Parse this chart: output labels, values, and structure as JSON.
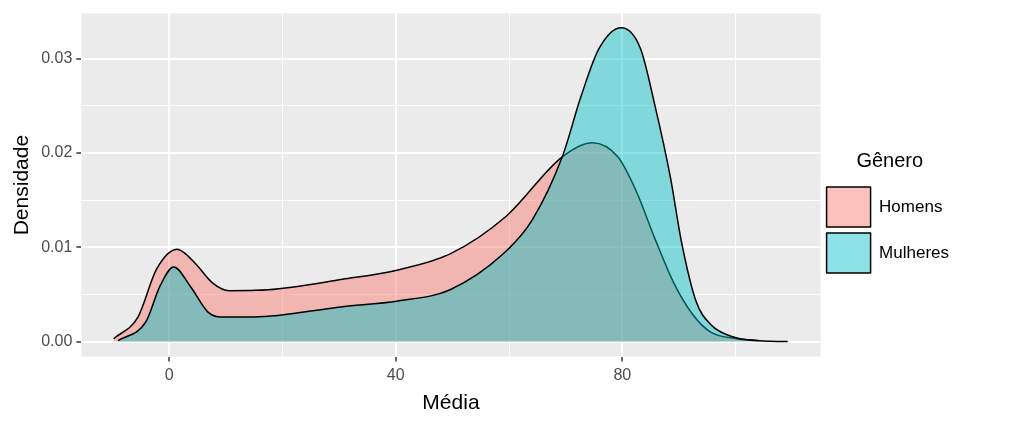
{
  "chart_data": {
    "type": "area",
    "xlabel": "Média",
    "ylabel": "Densidade",
    "legend_title": "Gênero",
    "legend": "right",
    "grid": true,
    "xlim": [
      -15.5,
      115
    ],
    "ylim": [
      -0.0016,
      0.0348
    ],
    "xticks": [
      0,
      {
        "value": 20,
        "label": null
      },
      40,
      {
        "value": 60,
        "label": null
      },
      80,
      {
        "value": 100,
        "label": null
      }
    ],
    "yticks": [
      {
        "value": 0,
        "label": "0.00"
      },
      {
        "value": 0.005,
        "label": null
      },
      {
        "value": 0.01,
        "label": "0.01"
      },
      {
        "value": 0.015,
        "label": null
      },
      {
        "value": 0.02,
        "label": "0.02"
      },
      {
        "value": 0.025,
        "label": null
      },
      {
        "value": 0.03,
        "label": "0.03"
      }
    ],
    "series": [
      {
        "name": "Homens",
        "color": "#f8766d",
        "x": [
          -9.8,
          -5.5,
          -2.2,
          1.4,
          4.3,
          7.7,
          10.6,
          17.5,
          30.6,
          40.4,
          49.6,
          59.5,
          69.4,
          74.7,
          79.2,
          82.5,
          85.7,
          89.1,
          92.4,
          95.6,
          100.3,
          104
        ],
        "values": [
          0.0003,
          0.0026,
          0.0077,
          0.0098,
          0.0085,
          0.0062,
          0.0054,
          0.0055,
          0.0066,
          0.0076,
          0.0093,
          0.0133,
          0.0196,
          0.0211,
          0.0196,
          0.0159,
          0.011,
          0.0062,
          0.0029,
          0.001,
          0.0003,
          0.0001
        ]
      },
      {
        "name": "Mulheres",
        "color": "#00bfc4",
        "x": [
          -9,
          -4.1,
          -1.6,
          0.8,
          3.7,
          6.9,
          9.7,
          14.8,
          30.6,
          40.4,
          49.6,
          59.5,
          64.1,
          69.4,
          72.7,
          75.9,
          79.8,
          83.2,
          85.7,
          88.5,
          90.4,
          93,
          95.6,
          99.5,
          103.4,
          109.2
        ],
        "values": [
          0.0001,
          0.0021,
          0.0059,
          0.0079,
          0.0059,
          0.0031,
          0.0026,
          0.0026,
          0.0037,
          0.0043,
          0.0055,
          0.0096,
          0.0129,
          0.0196,
          0.026,
          0.0311,
          0.0333,
          0.0311,
          0.0252,
          0.0174,
          0.0107,
          0.0043,
          0.0018,
          0.0005,
          0.0001,
          0
        ]
      }
    ]
  }
}
